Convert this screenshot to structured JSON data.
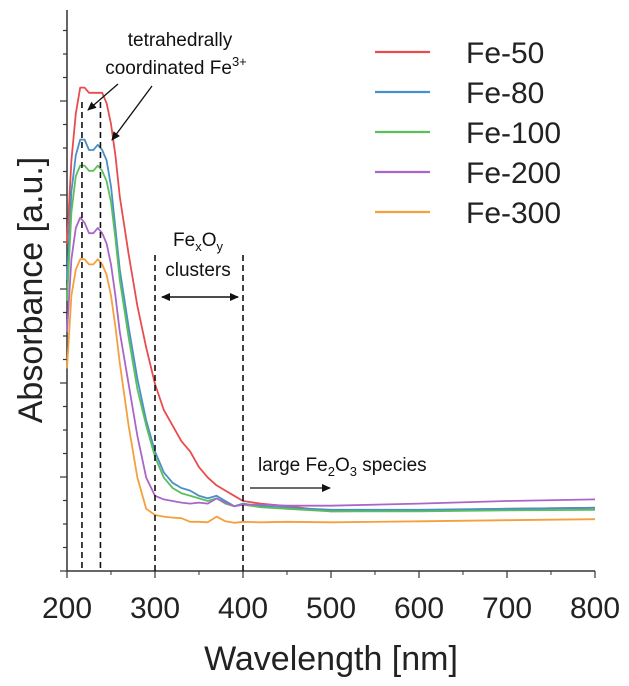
{
  "chart_data": {
    "type": "line",
    "xlabel": "Wavelength [nm]",
    "ylabel": "Absorbance [a.u.]",
    "xlim": [
      200,
      800
    ],
    "ylim": [
      0,
      1
    ],
    "x_ticks": [
      "200",
      "300",
      "400",
      "500",
      "600",
      "700",
      "800"
    ],
    "grid": false,
    "legend_position": "top-right",
    "series": [
      {
        "name": "Fe-50",
        "color": "#e84c4c",
        "points": [
          [
            200,
            0.57
          ],
          [
            205,
            0.73
          ],
          [
            210,
            0.82
          ],
          [
            215,
            0.87
          ],
          [
            220,
            0.87
          ],
          [
            225,
            0.86
          ],
          [
            230,
            0.86
          ],
          [
            235,
            0.86
          ],
          [
            240,
            0.86
          ],
          [
            245,
            0.84
          ],
          [
            250,
            0.8
          ],
          [
            255,
            0.74
          ],
          [
            260,
            0.66
          ],
          [
            270,
            0.55
          ],
          [
            280,
            0.45
          ],
          [
            290,
            0.37
          ],
          [
            300,
            0.3
          ],
          [
            310,
            0.25
          ],
          [
            320,
            0.22
          ],
          [
            330,
            0.19
          ],
          [
            340,
            0.17
          ],
          [
            350,
            0.14
          ],
          [
            360,
            0.12
          ],
          [
            370,
            0.105
          ],
          [
            380,
            0.095
          ],
          [
            390,
            0.085
          ],
          [
            400,
            0.075
          ],
          [
            420,
            0.07
          ],
          [
            450,
            0.065
          ],
          [
            500,
            0.055
          ],
          [
            600,
            0.057
          ],
          [
            700,
            0.06
          ],
          [
            800,
            0.062
          ]
        ]
      },
      {
        "name": "Fe-80",
        "color": "#4a90c8",
        "points": [
          [
            200,
            0.5
          ],
          [
            205,
            0.67
          ],
          [
            210,
            0.74
          ],
          [
            215,
            0.77
          ],
          [
            220,
            0.77
          ],
          [
            225,
            0.75
          ],
          [
            230,
            0.75
          ],
          [
            235,
            0.76
          ],
          [
            240,
            0.75
          ],
          [
            245,
            0.73
          ],
          [
            250,
            0.68
          ],
          [
            255,
            0.6
          ],
          [
            260,
            0.52
          ],
          [
            270,
            0.41
          ],
          [
            280,
            0.31
          ],
          [
            290,
            0.23
          ],
          [
            300,
            0.17
          ],
          [
            310,
            0.13
          ],
          [
            320,
            0.11
          ],
          [
            330,
            0.1
          ],
          [
            340,
            0.095
          ],
          [
            350,
            0.085
          ],
          [
            360,
            0.08
          ],
          [
            370,
            0.085
          ],
          [
            380,
            0.075
          ],
          [
            390,
            0.065
          ],
          [
            400,
            0.07
          ],
          [
            420,
            0.065
          ],
          [
            450,
            0.062
          ],
          [
            500,
            0.058
          ],
          [
            600,
            0.058
          ],
          [
            700,
            0.06
          ],
          [
            800,
            0.062
          ]
        ]
      },
      {
        "name": "Fe-100",
        "color": "#5bbf5b",
        "points": [
          [
            200,
            0.46
          ],
          [
            205,
            0.63
          ],
          [
            210,
            0.7
          ],
          [
            215,
            0.72
          ],
          [
            220,
            0.72
          ],
          [
            225,
            0.71
          ],
          [
            230,
            0.71
          ],
          [
            235,
            0.72
          ],
          [
            240,
            0.71
          ],
          [
            245,
            0.69
          ],
          [
            250,
            0.65
          ],
          [
            255,
            0.58
          ],
          [
            260,
            0.5
          ],
          [
            270,
            0.39
          ],
          [
            280,
            0.29
          ],
          [
            290,
            0.22
          ],
          [
            300,
            0.16
          ],
          [
            310,
            0.12
          ],
          [
            320,
            0.1
          ],
          [
            330,
            0.09
          ],
          [
            340,
            0.085
          ],
          [
            350,
            0.08
          ],
          [
            360,
            0.075
          ],
          [
            370,
            0.08
          ],
          [
            380,
            0.07
          ],
          [
            390,
            0.065
          ],
          [
            400,
            0.068
          ],
          [
            420,
            0.063
          ],
          [
            450,
            0.06
          ],
          [
            500,
            0.055
          ],
          [
            600,
            0.055
          ],
          [
            700,
            0.057
          ],
          [
            800,
            0.058
          ]
        ]
      },
      {
        "name": "Fe-200",
        "color": "#a966c8",
        "points": [
          [
            200,
            0.4
          ],
          [
            205,
            0.54
          ],
          [
            210,
            0.6
          ],
          [
            215,
            0.62
          ],
          [
            220,
            0.61
          ],
          [
            225,
            0.59
          ],
          [
            230,
            0.59
          ],
          [
            235,
            0.6
          ],
          [
            240,
            0.59
          ],
          [
            245,
            0.57
          ],
          [
            250,
            0.53
          ],
          [
            255,
            0.47
          ],
          [
            260,
            0.4
          ],
          [
            270,
            0.3
          ],
          [
            280,
            0.2
          ],
          [
            290,
            0.12
          ],
          [
            300,
            0.085
          ],
          [
            310,
            0.078
          ],
          [
            320,
            0.075
          ],
          [
            330,
            0.072
          ],
          [
            340,
            0.07
          ],
          [
            350,
            0.072
          ],
          [
            360,
            0.07
          ],
          [
            370,
            0.08
          ],
          [
            380,
            0.072
          ],
          [
            390,
            0.065
          ],
          [
            400,
            0.068
          ],
          [
            420,
            0.068
          ],
          [
            450,
            0.066
          ],
          [
            500,
            0.066
          ],
          [
            600,
            0.07
          ],
          [
            700,
            0.075
          ],
          [
            800,
            0.078
          ]
        ]
      },
      {
        "name": "Fe-300",
        "color": "#f4a03c",
        "points": [
          [
            200,
            0.33
          ],
          [
            205,
            0.47
          ],
          [
            210,
            0.52
          ],
          [
            215,
            0.54
          ],
          [
            220,
            0.54
          ],
          [
            225,
            0.53
          ],
          [
            230,
            0.53
          ],
          [
            235,
            0.54
          ],
          [
            240,
            0.53
          ],
          [
            245,
            0.51
          ],
          [
            250,
            0.47
          ],
          [
            255,
            0.41
          ],
          [
            260,
            0.34
          ],
          [
            270,
            0.22
          ],
          [
            280,
            0.12
          ],
          [
            290,
            0.06
          ],
          [
            300,
            0.048
          ],
          [
            310,
            0.045
          ],
          [
            320,
            0.043
          ],
          [
            330,
            0.042
          ],
          [
            340,
            0.035
          ],
          [
            350,
            0.035
          ],
          [
            360,
            0.034
          ],
          [
            370,
            0.045
          ],
          [
            380,
            0.036
          ],
          [
            390,
            0.033
          ],
          [
            400,
            0.035
          ],
          [
            420,
            0.034
          ],
          [
            450,
            0.035
          ],
          [
            500,
            0.034
          ],
          [
            600,
            0.036
          ],
          [
            700,
            0.038
          ],
          [
            800,
            0.04
          ]
        ]
      }
    ],
    "annotations": [
      {
        "text_line1": "tetrahedrally",
        "text_line2": "coordinated Fe",
        "sup": "3+"
      },
      {
        "base": "Fe",
        "sub1": "x",
        "mid": "O",
        "sub2": "y",
        "line2": "clusters"
      },
      {
        "text_pre": "large Fe",
        "sub1": "2",
        "mid": "O",
        "sub2": "3",
        "text_post": " species"
      }
    ],
    "dashed_lines_x": [
      217,
      238,
      300,
      400
    ]
  }
}
